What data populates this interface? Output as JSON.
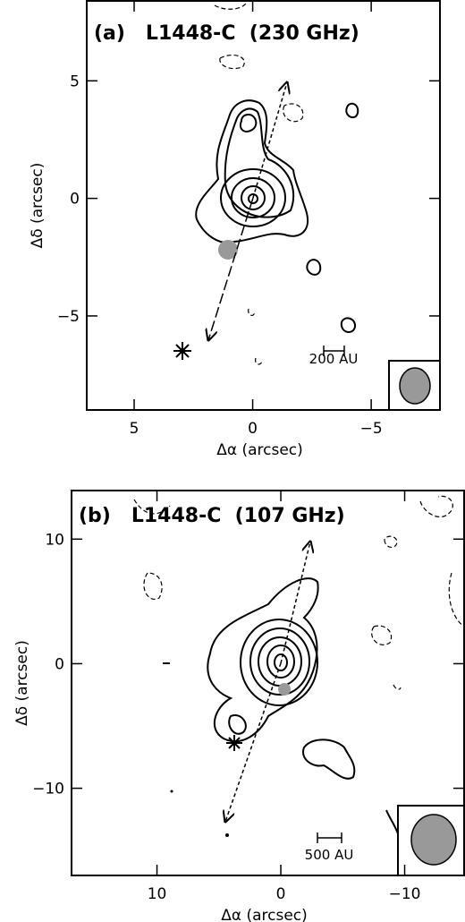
{
  "chart_data": [
    {
      "type": "contour",
      "title": "(a)   L1448-C  (230 GHz)",
      "xlabel": "Δα (arcsec)",
      "ylabel": "Δδ (arcsec)",
      "xlim": [
        7.0,
        -7.9
      ],
      "ylim": [
        -9.0,
        8.4
      ],
      "xticks": [
        5,
        0,
        {
          "value": -5,
          "label": "−5"
        }
      ],
      "yticks": [
        5,
        0,
        {
          "value": -5,
          "label": "−5"
        }
      ],
      "scale_bar_label": "200 AU"
    },
    {
      "type": "contour",
      "title": "(b)   L1448-C  (107 GHz)",
      "xlabel": "Δα (arcsec)",
      "ylabel": "Δδ (arcsec)",
      "xlim": [
        16.9,
        -14.8
      ],
      "ylim": [
        -17.0,
        13.9
      ],
      "xticks": [
        10,
        0,
        {
          "value": -10,
          "label": "−10"
        }
      ],
      "yticks": [
        10,
        0,
        {
          "value": -10,
          "label": "−10"
        }
      ],
      "scale_bar_label": "500 AU"
    }
  ]
}
